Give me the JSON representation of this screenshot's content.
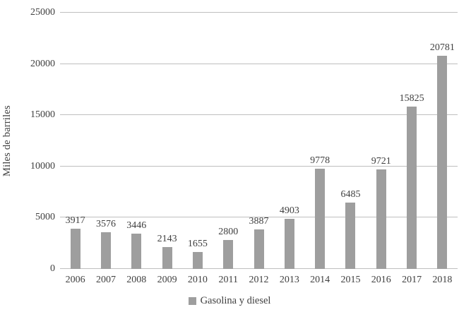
{
  "chart_data": {
    "type": "bar",
    "title": "",
    "categories": [
      "2006",
      "2007",
      "2008",
      "2009",
      "2010",
      "2011",
      "2012",
      "2013",
      "2014",
      "2015",
      "2016",
      "2017",
      "2018"
    ],
    "values": [
      3917,
      3576,
      3446,
      2143,
      1655,
      2800,
      3887,
      4903,
      9778,
      6485,
      9721,
      15825,
      20781
    ],
    "xlabel": "",
    "ylabel": "Miles de barriles",
    "ylim": [
      0,
      25000
    ],
    "yticks": [
      0,
      5000,
      10000,
      15000,
      20000,
      25000
    ],
    "grid": true,
    "legend": {
      "position": "bottom",
      "entries": [
        {
          "label": "Gasolina y diesel",
          "color": "#9e9e9e"
        }
      ]
    },
    "colors": {
      "bar": "#9e9e9e",
      "gridline": "#bfbfbf",
      "text": "#404040",
      "background": "#ffffff"
    }
  }
}
